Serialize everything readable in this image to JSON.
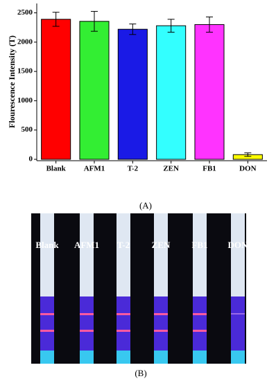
{
  "chart_data": {
    "type": "bar",
    "y_label": "Flourescence Intensity (T)",
    "categories": [
      "Blank",
      "AFM1",
      "T-2",
      "ZEN",
      "FB1",
      "DON"
    ],
    "values": [
      2390,
      2355,
      2220,
      2280,
      2300,
      80
    ],
    "errors": [
      120,
      170,
      90,
      110,
      130,
      30
    ],
    "colors": [
      "#ff0000",
      "#33ee33",
      "#1a1ae6",
      "#33ffff",
      "#ff33ff",
      "#ffff00"
    ],
    "ylim": [
      0,
      2660
    ],
    "yticks": [
      0,
      500,
      1000,
      1500,
      2000,
      2500
    ]
  },
  "panel_labels": [
    "(A)",
    "(B)"
  ],
  "photo": {
    "labels": [
      "Blank",
      "AFM1",
      "T-2",
      "ZEN",
      "FB1",
      "DON"
    ]
  }
}
